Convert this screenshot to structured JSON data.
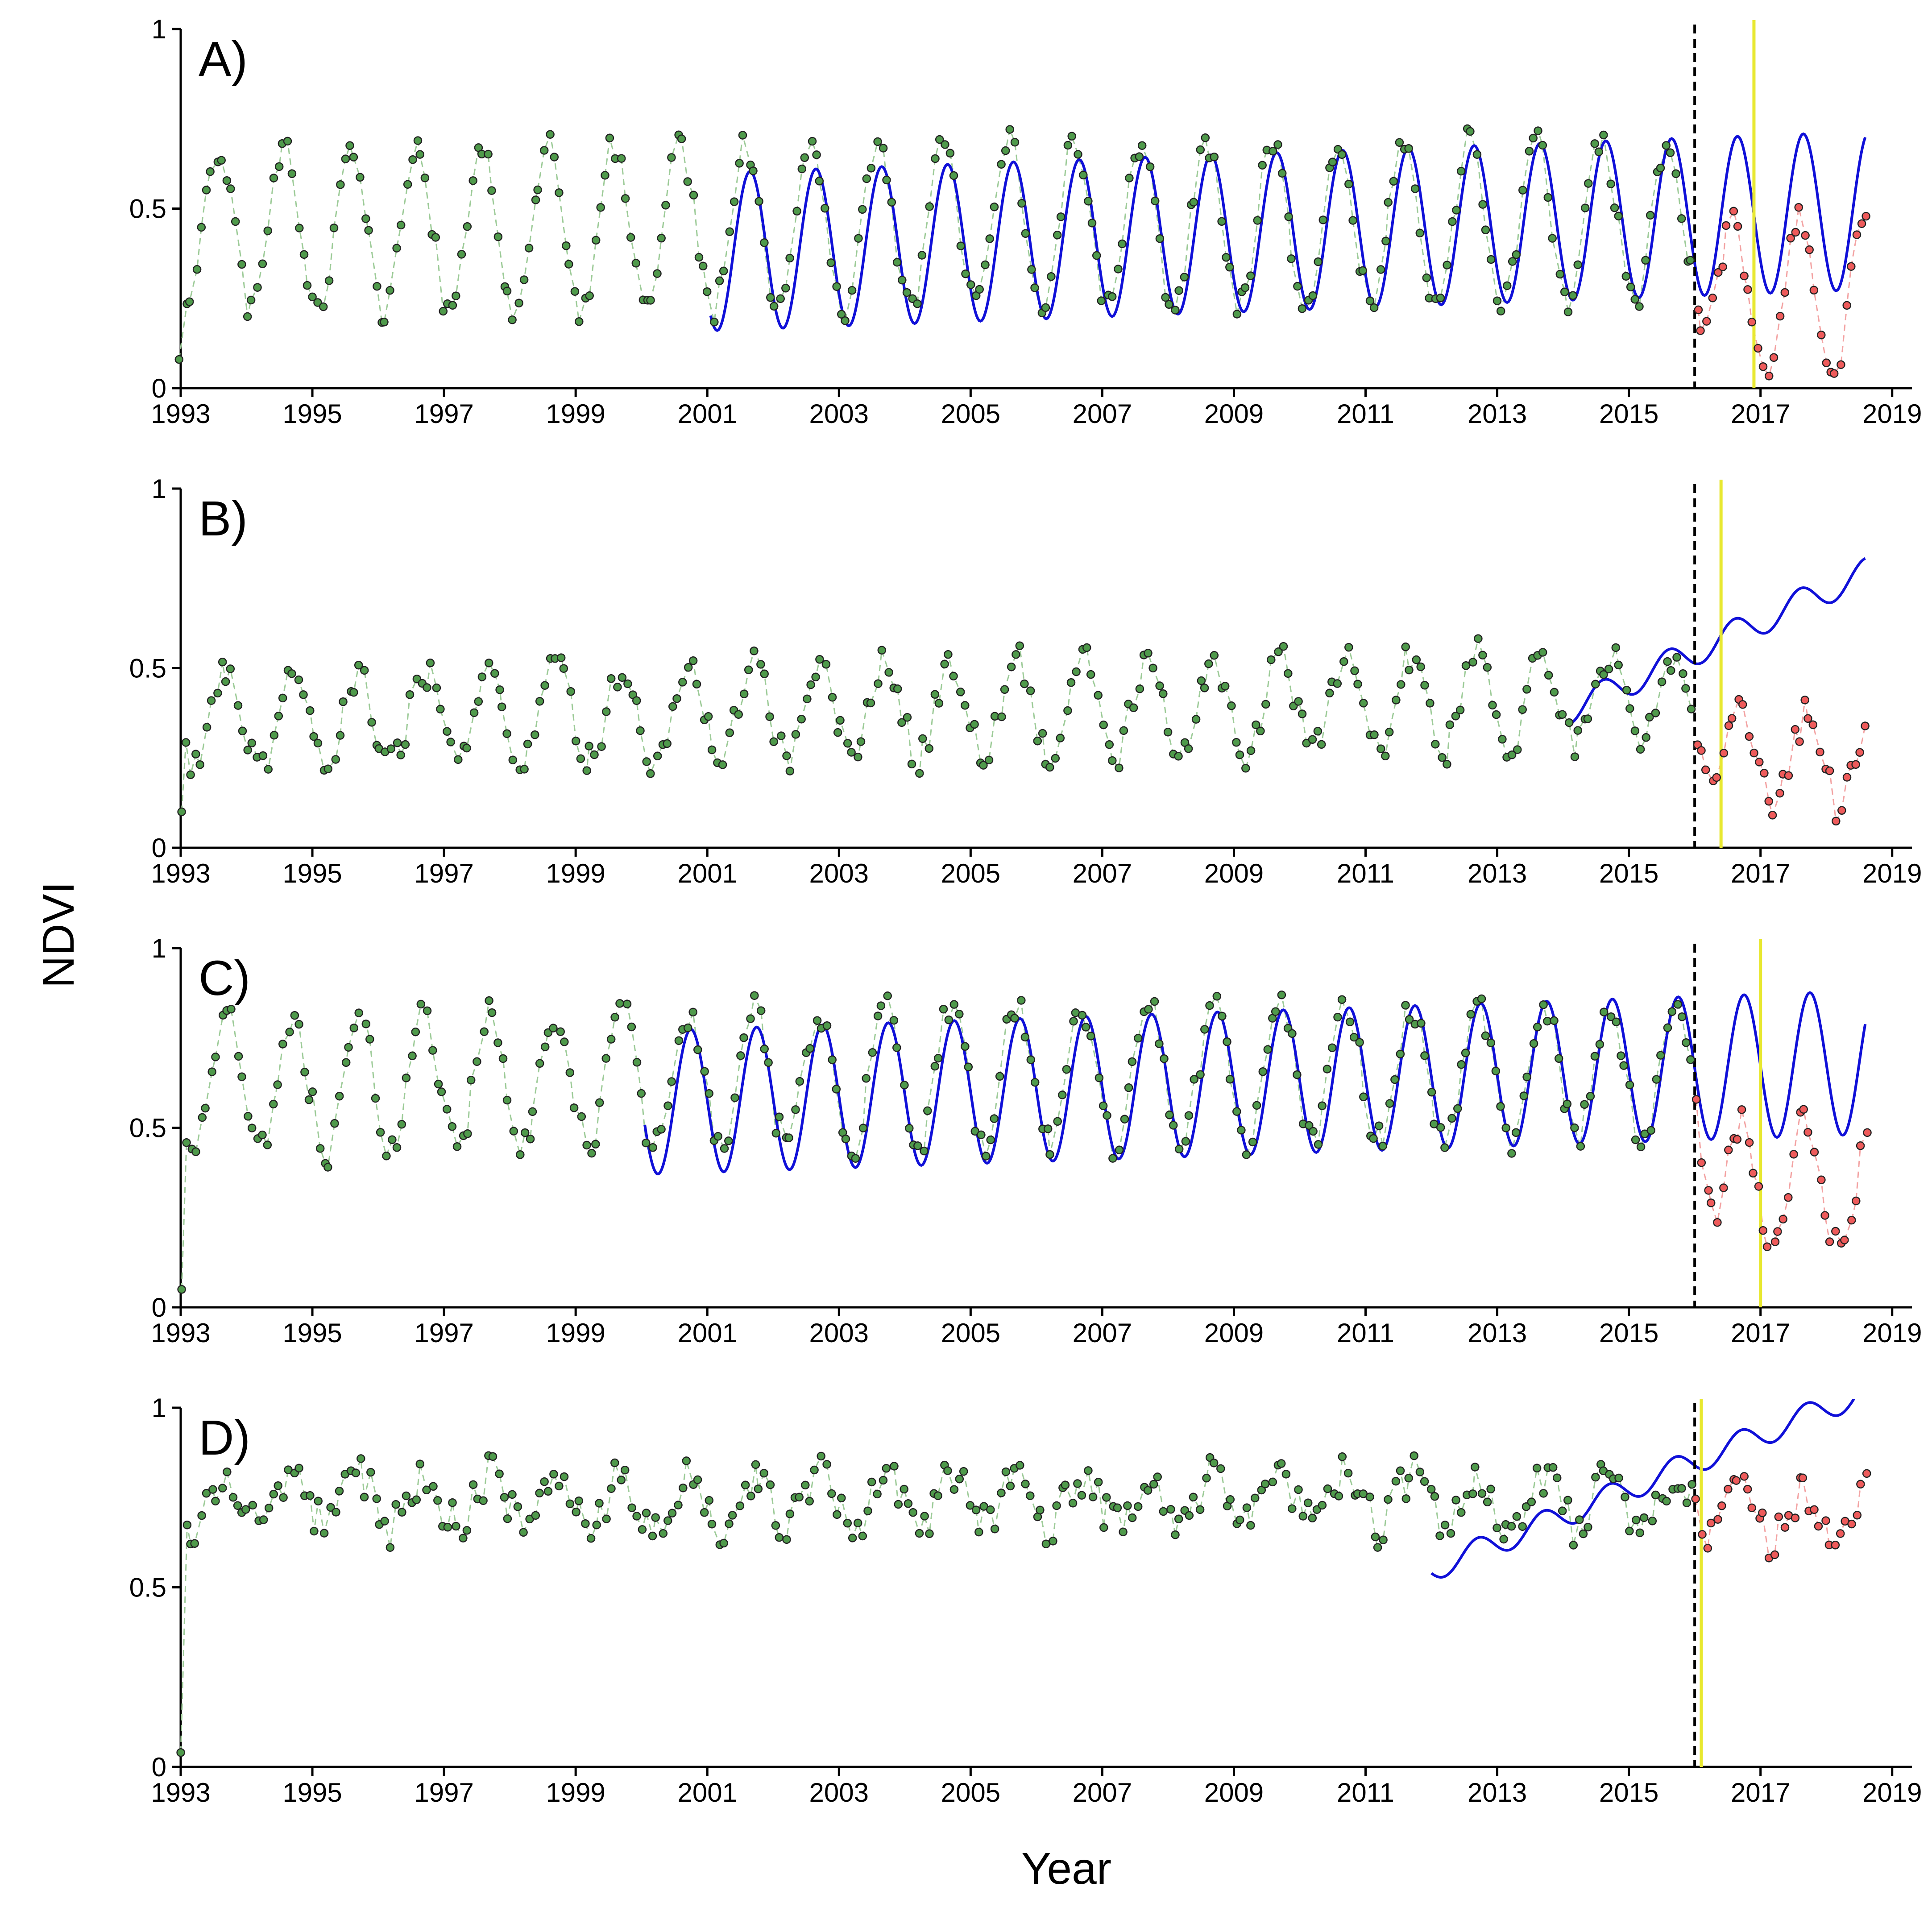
{
  "chart_data": {
    "type": "scatter",
    "ylabel": "NDVI",
    "xlabel": "Year",
    "xlim": [
      1993,
      2019.3
    ],
    "ylim": [
      0,
      1
    ],
    "x_ticks": [
      1993,
      1995,
      1997,
      1999,
      2001,
      2003,
      2005,
      2007,
      2009,
      2011,
      2013,
      2015,
      2017,
      2019
    ],
    "y_ticks": [
      {
        "value": 0,
        "label": "0"
      },
      {
        "value": 0.5,
        "label": "0.5"
      },
      {
        "value": 1,
        "label": "1"
      }
    ],
    "styles": {
      "pre_point_fill": "#4f9a4b",
      "pre_line_color": "#9dcb98",
      "post_point_fill": "#ee5b5b",
      "post_line_color": "#f3a3a3",
      "model_color": "#1010d8",
      "event_line_color": "#e8e830",
      "breakpoint_line_color": "#000000",
      "point_edge": "#222222"
    },
    "panels": [
      {
        "label": "A)",
        "breakpoint": 2016.0,
        "event": 2016.9,
        "base": 0.44,
        "amp": 0.23,
        "trend": 0.001,
        "phase": 0.58,
        "min_obs": 0.08,
        "noise": 0.04,
        "post_drop": 0.22,
        "model": {
          "start": 2001.05,
          "end": 2018.6,
          "base": 0.38,
          "amp": 0.22,
          "trend": 0.0065,
          "phase": 0.65
        }
      },
      {
        "label": "B)",
        "breakpoint": 2016.0,
        "event": 2016.4,
        "base": 0.35,
        "amp": 0.13,
        "trend": 0.003,
        "phase": 0.7,
        "min_obs": 0.1,
        "noise": 0.05,
        "post_drop": 0.18,
        "model": {
          "start": 2014.05,
          "end": 2018.6,
          "base": 0.38,
          "amp": 0.04,
          "trend": 0.085,
          "phase": 0.6
        }
      },
      {
        "label": "C)",
        "breakpoint": 2016.0,
        "event": 2017.0,
        "base": 0.62,
        "amp": 0.19,
        "trend": 0.002,
        "phase": 0.7,
        "min_obs": 0.05,
        "noise": 0.05,
        "post_drop": 0.33,
        "model": {
          "start": 2000.05,
          "end": 2018.6,
          "base": 0.57,
          "amp": 0.2,
          "trend": 0.006,
          "phase": 0.75
        }
      },
      {
        "label": "D)",
        "breakpoint": 2016.0,
        "event": 2016.1,
        "base": 0.74,
        "amp": 0.07,
        "trend": 0.0,
        "phase": 0.7,
        "min_obs": 0.04,
        "noise": 0.06,
        "post_drop": 0.04,
        "model": {
          "start": 2012.0,
          "end": 2018.5,
          "base": 0.55,
          "amp": 0.035,
          "trend": 0.075,
          "phase": 0.7
        }
      }
    ]
  }
}
